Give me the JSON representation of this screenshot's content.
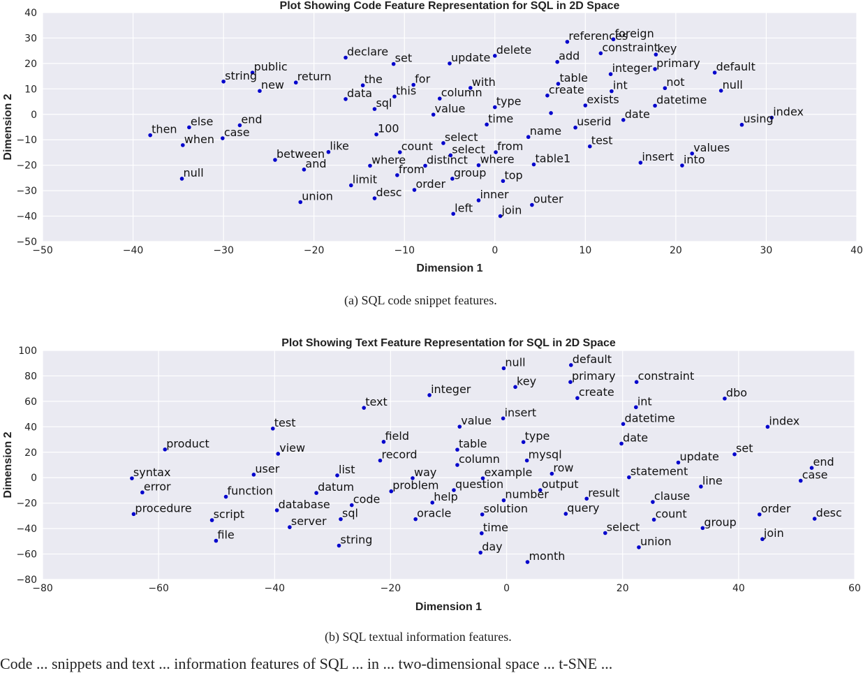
{
  "captions": {
    "a": "(a)  SQL code snippet features.",
    "b": "(b)  SQL textual information features."
  },
  "footer_text": "Code ... snippets and text ... information features of SQL ... in ... two-dimensional space ... t-SNE ...",
  "chart_data": [
    {
      "type": "scatter",
      "title": "Plot Showing Code Feature Representation for SQL in 2D Space",
      "xlabel": "Dimension 1",
      "ylabel": "Dimension 2",
      "xlim": [
        -50,
        40
      ],
      "ylim": [
        -50,
        40
      ],
      "xticks": [
        -50,
        -40,
        -30,
        -20,
        -10,
        0,
        10,
        20,
        30,
        40
      ],
      "yticks": [
        -50,
        -40,
        -30,
        -20,
        -10,
        0,
        10,
        20,
        30,
        40
      ],
      "tick_labels_x": [
        "−50",
        "−40",
        "−30",
        "−20",
        "−10",
        "0",
        "10",
        "20",
        "30",
        "40"
      ],
      "tick_labels_y": [
        "−50",
        "−40",
        "−30",
        "−20",
        "−10",
        "0",
        "10",
        "20",
        "30",
        "40"
      ],
      "grid": true,
      "marker_color": "#0000cc",
      "background": "#eaeaf2",
      "points": [
        {
          "label": "references",
          "x": 8.0,
          "y": 28.5
        },
        {
          "label": "foreign",
          "x": 13.1,
          "y": 29.5
        },
        {
          "label": "delete",
          "x": 0.0,
          "y": 23.0
        },
        {
          "label": "constraint",
          "x": 11.7,
          "y": 24.0
        },
        {
          "label": "key",
          "x": 17.8,
          "y": 23.5
        },
        {
          "label": "declare",
          "x": -16.5,
          "y": 22.3
        },
        {
          "label": "set",
          "x": -11.2,
          "y": 19.8
        },
        {
          "label": "update",
          "x": -5.0,
          "y": 20.0
        },
        {
          "label": "add",
          "x": 6.9,
          "y": 20.6
        },
        {
          "label": "public",
          "x": -26.8,
          "y": 16.4
        },
        {
          "label": "primary",
          "x": 17.7,
          "y": 17.8
        },
        {
          "label": "default",
          "x": 24.3,
          "y": 16.4
        },
        {
          "label": "null",
          "x": 25.0,
          "y": 9.3
        },
        {
          "label": "integer",
          "x": 12.8,
          "y": 15.8
        },
        {
          "label": "string",
          "x": -30.0,
          "y": 12.9
        },
        {
          "label": "return",
          "x": -22.0,
          "y": 12.5
        },
        {
          "label": "new",
          "x": -26.0,
          "y": 9.2
        },
        {
          "label": "the",
          "x": -14.6,
          "y": 11.4
        },
        {
          "label": "for",
          "x": -9.0,
          "y": 11.6
        },
        {
          "label": "with",
          "x": -2.7,
          "y": 10.4
        },
        {
          "label": "table",
          "x": 7.0,
          "y": 12.0
        },
        {
          "label": "int",
          "x": 12.9,
          "y": 9.1
        },
        {
          "label": "not",
          "x": 18.8,
          "y": 10.3
        },
        {
          "label": "data",
          "x": -16.5,
          "y": 6.0
        },
        {
          "label": "this",
          "x": -11.1,
          "y": 7.0
        },
        {
          "label": "column",
          "x": -6.1,
          "y": 6.2
        },
        {
          "label": "create",
          "x": 5.8,
          "y": 7.4
        },
        {
          "label": "sql",
          "x": -13.3,
          "y": 2.1
        },
        {
          "label": "type",
          "x": 0.0,
          "y": 2.8
        },
        {
          "label": "exists",
          "x": 10.0,
          "y": 3.5
        },
        {
          "label": "datetime",
          "x": 17.7,
          "y": 3.4
        },
        {
          "label": "value",
          "x": -6.8,
          "y": -0.1
        },
        {
          "label": "",
          "x": 6.2,
          "y": 0.5
        },
        {
          "label": "date",
          "x": 14.2,
          "y": -2.2
        },
        {
          "label": "index",
          "x": 30.6,
          "y": -1.3
        },
        {
          "label": "time",
          "x": -0.9,
          "y": -4.0
        },
        {
          "label": "using",
          "x": 27.3,
          "y": -4.1
        },
        {
          "label": "end",
          "x": -28.2,
          "y": -4.3
        },
        {
          "label": "else",
          "x": -33.8,
          "y": -5.1
        },
        {
          "label": "then",
          "x": -38.1,
          "y": -8.2
        },
        {
          "label": "case",
          "x": -30.1,
          "y": -9.4
        },
        {
          "label": "when",
          "x": -34.5,
          "y": -12.1
        },
        {
          "label": "100",
          "x": -13.1,
          "y": -7.9
        },
        {
          "label": "name",
          "x": 3.7,
          "y": -8.9
        },
        {
          "label": "userid",
          "x": 8.9,
          "y": -5.2
        },
        {
          "label": "select",
          "x": -5.7,
          "y": -11.3
        },
        {
          "label": "test",
          "x": 10.5,
          "y": -12.6
        },
        {
          "label": "like",
          "x": -18.4,
          "y": -14.8
        },
        {
          "label": "count",
          "x": -10.5,
          "y": -14.9
        },
        {
          "label": "select",
          "x": -4.9,
          "y": -16.1
        },
        {
          "label": "from",
          "x": 0.1,
          "y": -14.9
        },
        {
          "label": "values",
          "x": 21.8,
          "y": -15.4
        },
        {
          "label": "between",
          "x": -24.3,
          "y": -17.9
        },
        {
          "label": "where",
          "x": -13.8,
          "y": -20.2
        },
        {
          "label": "distinct",
          "x": -7.7,
          "y": -20.2
        },
        {
          "label": "where",
          "x": -1.8,
          "y": -20.0
        },
        {
          "label": "table1",
          "x": 4.3,
          "y": -19.7
        },
        {
          "label": "insert",
          "x": 16.1,
          "y": -19.0
        },
        {
          "label": "into",
          "x": 20.7,
          "y": -20.1
        },
        {
          "label": "and",
          "x": -21.1,
          "y": -21.7
        },
        {
          "label": "from",
          "x": -10.8,
          "y": -23.9
        },
        {
          "label": "group",
          "x": -4.7,
          "y": -25.3
        },
        {
          "label": "null",
          "x": -34.6,
          "y": -25.3
        },
        {
          "label": "top",
          "x": 0.9,
          "y": -26.2
        },
        {
          "label": "limit",
          "x": -15.9,
          "y": -27.9
        },
        {
          "label": "order",
          "x": -8.9,
          "y": -29.7
        },
        {
          "label": "desc",
          "x": -13.3,
          "y": -33.0
        },
        {
          "label": "union",
          "x": -21.5,
          "y": -34.5
        },
        {
          "label": "inner",
          "x": -1.8,
          "y": -33.8
        },
        {
          "label": "outer",
          "x": 4.1,
          "y": -35.6
        },
        {
          "label": "left",
          "x": -4.6,
          "y": -39.1
        },
        {
          "label": "join",
          "x": 0.6,
          "y": -40.0
        }
      ]
    },
    {
      "type": "scatter",
      "title": "Plot Showing Text Feature Representation for SQL in 2D Space",
      "xlabel": "Dimension 1",
      "ylabel": "Dimension 2",
      "xlim": [
        -80,
        60
      ],
      "ylim": [
        -80,
        100
      ],
      "xticks": [
        -80,
        -60,
        -40,
        -20,
        0,
        20,
        40,
        60
      ],
      "yticks": [
        -80,
        -60,
        -40,
        -20,
        0,
        20,
        40,
        60,
        80,
        100
      ],
      "tick_labels_x": [
        "−80",
        "−60",
        "−40",
        "−20",
        "0",
        "20",
        "40",
        "60"
      ],
      "tick_labels_y": [
        "−80",
        "−60",
        "−40",
        "−20",
        "0",
        "20",
        "40",
        "60",
        "80",
        "100"
      ],
      "grid": true,
      "marker_color": "#0000cc",
      "background": "#eaeaf2",
      "points": [
        {
          "label": "null",
          "x": -0.5,
          "y": 86.0
        },
        {
          "label": "default",
          "x": 11.1,
          "y": 88.5
        },
        {
          "label": "primary",
          "x": 11.0,
          "y": 75.2
        },
        {
          "label": "constraint",
          "x": 22.4,
          "y": 75.2
        },
        {
          "label": "key",
          "x": 1.5,
          "y": 71.3
        },
        {
          "label": "integer",
          "x": -13.3,
          "y": 64.9
        },
        {
          "label": "create",
          "x": 12.2,
          "y": 62.6
        },
        {
          "label": "dbo",
          "x": 37.6,
          "y": 62.2
        },
        {
          "label": "text",
          "x": -24.6,
          "y": 54.9
        },
        {
          "label": "int",
          "x": 22.3,
          "y": 55.4
        },
        {
          "label": "insert",
          "x": -0.6,
          "y": 46.6
        },
        {
          "label": "datetime",
          "x": 20.1,
          "y": 42.2
        },
        {
          "label": "value",
          "x": -8.1,
          "y": 40.1
        },
        {
          "label": "test",
          "x": -40.3,
          "y": 38.6
        },
        {
          "label": "index",
          "x": 45.0,
          "y": 40.0
        },
        {
          "label": "field",
          "x": -21.2,
          "y": 28.2
        },
        {
          "label": "type",
          "x": 2.9,
          "y": 28.0
        },
        {
          "label": "date",
          "x": 19.8,
          "y": 26.8
        },
        {
          "label": "product",
          "x": -58.9,
          "y": 22.2
        },
        {
          "label": "table",
          "x": -8.5,
          "y": 22.0
        },
        {
          "label": "view",
          "x": -39.4,
          "y": 18.8
        },
        {
          "label": "set",
          "x": 39.3,
          "y": 18.4
        },
        {
          "label": "record",
          "x": -21.8,
          "y": 13.5
        },
        {
          "label": "column",
          "x": -8.5,
          "y": 10.0
        },
        {
          "label": "mysql",
          "x": 3.5,
          "y": 13.5
        },
        {
          "label": "update",
          "x": 29.6,
          "y": 11.9
        },
        {
          "label": "end",
          "x": 52.6,
          "y": 7.7
        },
        {
          "label": "list",
          "x": -29.2,
          "y": 1.8
        },
        {
          "label": "user",
          "x": -43.6,
          "y": 2.4
        },
        {
          "label": "row",
          "x": 7.8,
          "y": 3.1
        },
        {
          "label": "statement",
          "x": 21.1,
          "y": 0.3
        },
        {
          "label": "syntax",
          "x": -64.6,
          "y": -0.5
        },
        {
          "label": "way",
          "x": -16.2,
          "y": -0.4
        },
        {
          "label": "example",
          "x": -4.1,
          "y": -0.5
        },
        {
          "label": "case",
          "x": 50.7,
          "y": -2.4
        },
        {
          "label": "line",
          "x": 33.5,
          "y": -7.0
        },
        {
          "label": "error",
          "x": -62.8,
          "y": -11.6
        },
        {
          "label": "datum",
          "x": -32.8,
          "y": -12.0
        },
        {
          "label": "problem",
          "x": -19.9,
          "y": -10.7
        },
        {
          "label": "question",
          "x": -9.1,
          "y": -9.8
        },
        {
          "label": "output",
          "x": 5.8,
          "y": -9.8
        },
        {
          "label": "function",
          "x": -48.4,
          "y": -15.0
        },
        {
          "label": "help",
          "x": -12.8,
          "y": -19.6
        },
        {
          "label": "number",
          "x": -0.5,
          "y": -17.8
        },
        {
          "label": "result",
          "x": 13.8,
          "y": -16.5
        },
        {
          "label": "clause",
          "x": 25.2,
          "y": -19.1
        },
        {
          "label": "procedure",
          "x": -64.3,
          "y": -28.6
        },
        {
          "label": "database",
          "x": -39.6,
          "y": -25.6
        },
        {
          "label": "code",
          "x": -26.7,
          "y": -21.6
        },
        {
          "label": "solution",
          "x": -4.2,
          "y": -28.9
        },
        {
          "label": "query",
          "x": 10.2,
          "y": -28.4
        },
        {
          "label": "order",
          "x": 43.6,
          "y": -28.9
        },
        {
          "label": "script",
          "x": -50.8,
          "y": -33.4
        },
        {
          "label": "sql",
          "x": -28.6,
          "y": -32.6
        },
        {
          "label": "oracle",
          "x": -15.7,
          "y": -32.6
        },
        {
          "label": "count",
          "x": 25.4,
          "y": -33.0
        },
        {
          "label": "desc",
          "x": 53.1,
          "y": -32.3
        },
        {
          "label": "server",
          "x": -37.4,
          "y": -38.9
        },
        {
          "label": "group",
          "x": 33.8,
          "y": -39.6
        },
        {
          "label": "time",
          "x": -4.3,
          "y": -43.7
        },
        {
          "label": "select",
          "x": 17.0,
          "y": -43.5
        },
        {
          "label": "file",
          "x": -50.1,
          "y": -49.6
        },
        {
          "label": "join",
          "x": 44.1,
          "y": -48.3
        },
        {
          "label": "string",
          "x": -28.9,
          "y": -53.4
        },
        {
          "label": "union",
          "x": 22.8,
          "y": -54.7
        },
        {
          "label": "day",
          "x": -4.5,
          "y": -58.9
        },
        {
          "label": "month",
          "x": 3.6,
          "y": -66.3
        }
      ]
    }
  ]
}
